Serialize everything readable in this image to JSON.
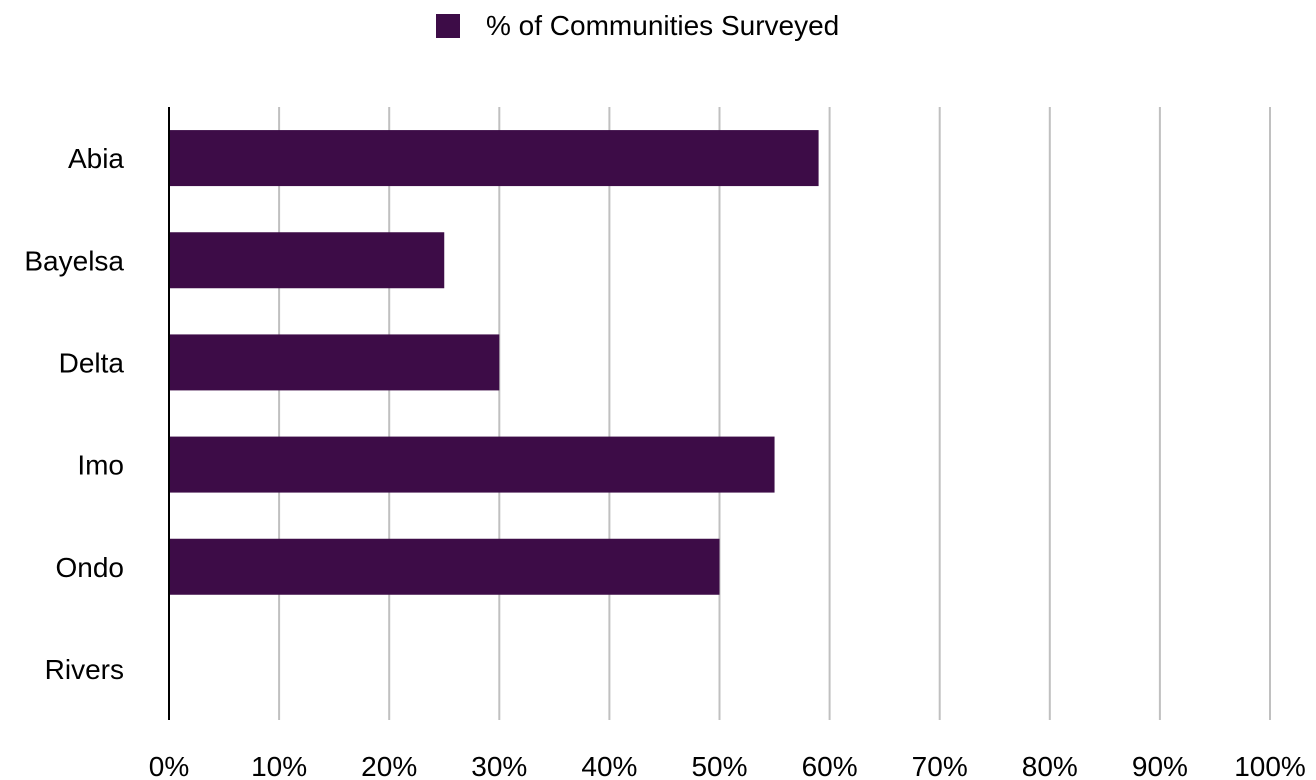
{
  "colors": {
    "bar": "#3d0c47",
    "gridline": "#c0c0c0",
    "axis": "#000000",
    "text": "#000000"
  },
  "chart_data": {
    "type": "bar",
    "orientation": "horizontal",
    "title": "",
    "xlabel": "",
    "ylabel": "",
    "categories": [
      "Abia",
      "Bayelsa",
      "Delta",
      "Imo",
      "Ondo",
      "Rivers"
    ],
    "series": [
      {
        "name": "% of Communities Surveyed",
        "values": [
          59,
          25,
          30,
          55,
          50,
          0
        ]
      }
    ],
    "xlim": [
      0,
      100
    ],
    "x_ticks": [
      "0%",
      "10%",
      "20%",
      "30%",
      "40%",
      "50%",
      "60%",
      "70%",
      "80%",
      "90%",
      "100%"
    ],
    "grid": true,
    "legend_position": "top-center"
  }
}
